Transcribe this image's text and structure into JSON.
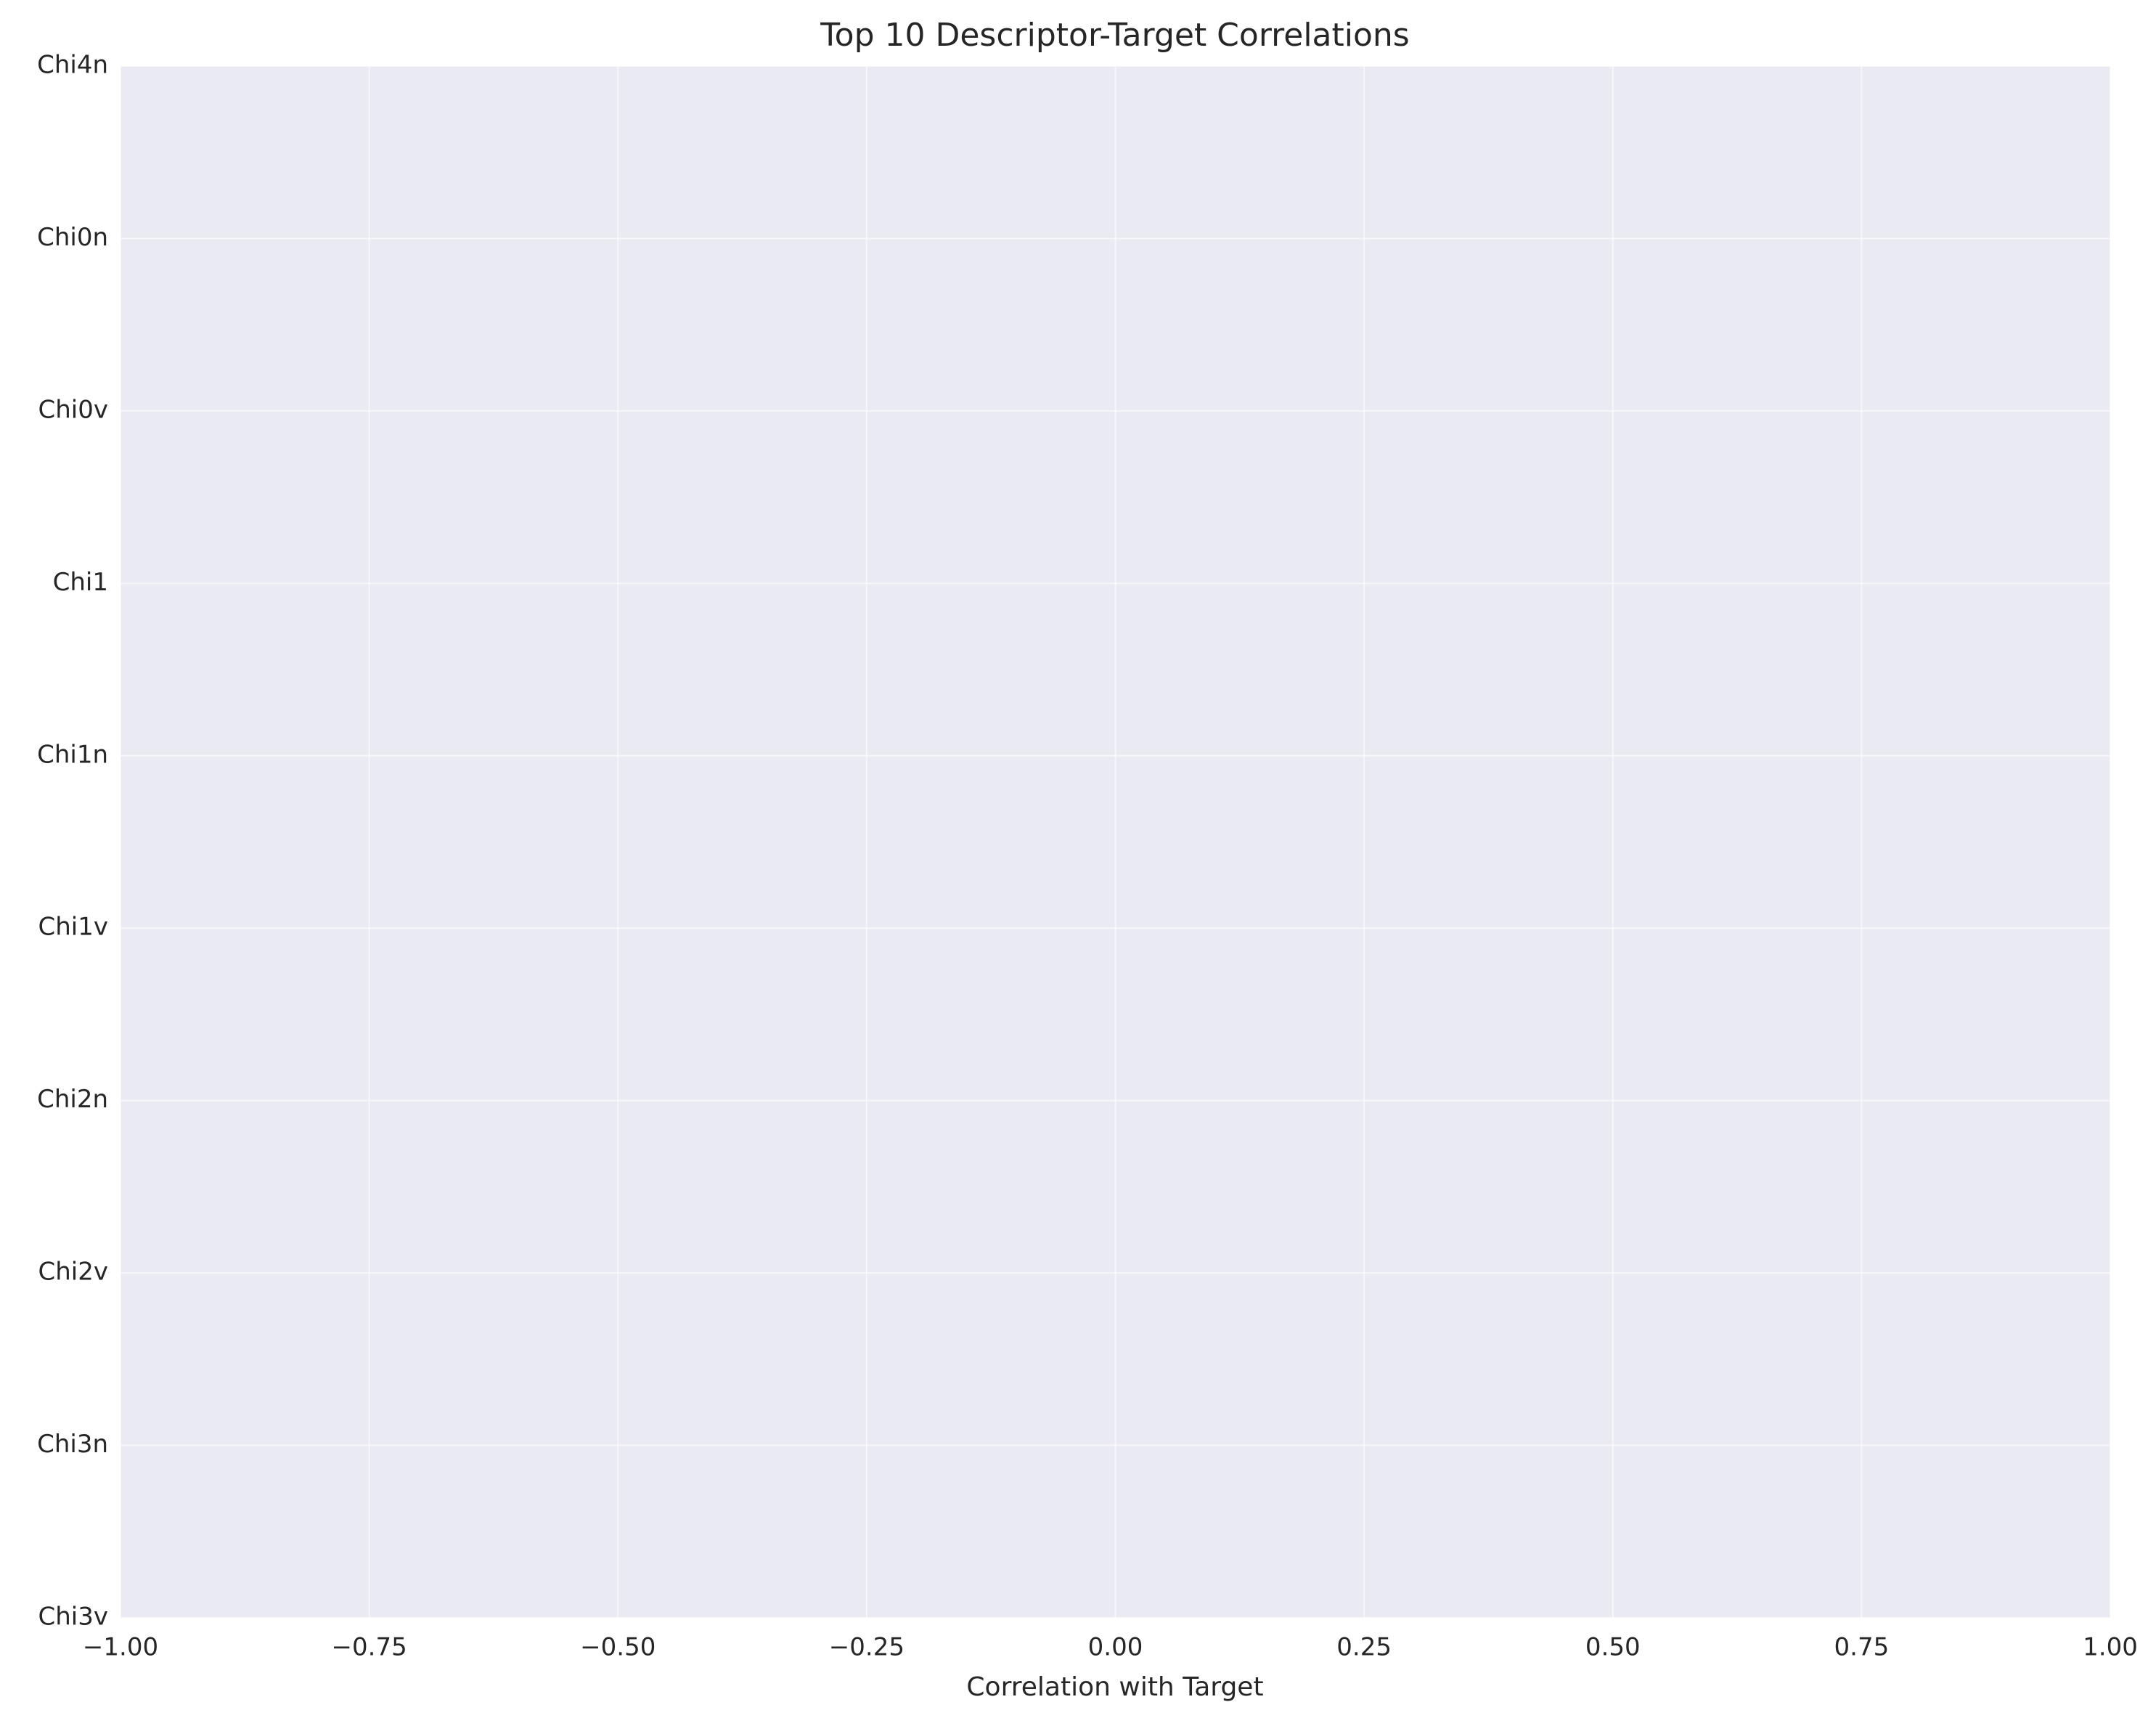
{
  "chart_data": {
    "type": "barh",
    "title": "Top 10 Descriptor-Target Correlations",
    "xlabel": "Correlation with Target",
    "categories": [
      "Chi4n",
      "Chi0n",
      "Chi0v",
      "Chi1",
      "Chi1n",
      "Chi1v",
      "Chi2n",
      "Chi2v",
      "Chi3n",
      "Chi3v"
    ],
    "values": [
      null,
      null,
      null,
      null,
      null,
      null,
      null,
      null,
      null,
      null
    ],
    "xlim": [
      -1,
      1
    ],
    "xticks": [
      {
        "value": -1,
        "label": "−1.00"
      },
      {
        "value": -0.75,
        "label": "−0.75"
      },
      {
        "value": -0.5,
        "label": "−0.50"
      },
      {
        "value": -0.25,
        "label": "−0.25"
      },
      {
        "value": 0,
        "label": "0.00"
      },
      {
        "value": 0.25,
        "label": "0.25"
      },
      {
        "value": 0.5,
        "label": "0.50"
      },
      {
        "value": 0.75,
        "label": "0.75"
      },
      {
        "value": 1,
        "label": "1.00"
      }
    ],
    "grid": true
  }
}
